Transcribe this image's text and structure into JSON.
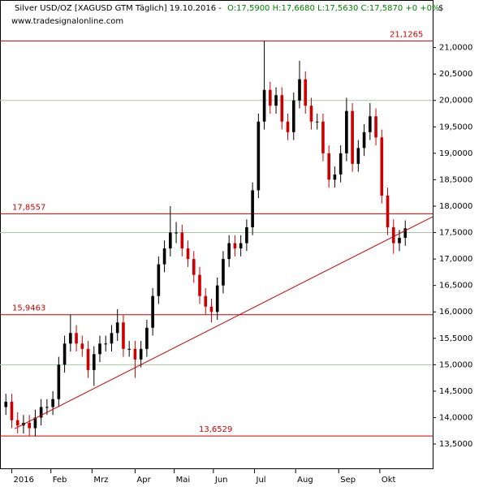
{
  "chart_data": {
    "type": "candlestick",
    "title": "Silver USD/OZ [XAGUSD GTM  Täglich] 19.10.2016 -",
    "quote": "O:17,5900 H:17,6680 L:17,5630 C:17,5870 +0 +0%",
    "source": "www.tradesignalonline.com",
    "y_unit": "$",
    "up_color": "#000000",
    "down_color": "#cc0000",
    "grid_color": "#a8c8a8",
    "level_color": "#cc0000",
    "xlim": [
      -3,
      218
    ],
    "ylim": [
      13.04,
      21.9
    ],
    "xticks": [
      {
        "value": 3,
        "label": "2016"
      },
      {
        "value": 23,
        "label": "Feb"
      },
      {
        "value": 44,
        "label": "Mrz"
      },
      {
        "value": 66,
        "label": "Apr"
      },
      {
        "value": 86,
        "label": "Mai"
      },
      {
        "value": 106,
        "label": "Jun"
      },
      {
        "value": 127,
        "label": "Jul"
      },
      {
        "value": 148,
        "label": "Aug"
      },
      {
        "value": 170,
        "label": "Sep"
      },
      {
        "value": 191,
        "label": "Okt"
      }
    ],
    "yticks": [
      {
        "value": 13.5,
        "label": "13,5000"
      },
      {
        "value": 14,
        "label": "14,0000"
      },
      {
        "value": 14.5,
        "label": "14,5000"
      },
      {
        "value": 15,
        "label": "15,0000"
      },
      {
        "value": 15.5,
        "label": "15,5000"
      },
      {
        "value": 16,
        "label": "16,0000"
      },
      {
        "value": 16.5,
        "label": "16,5000"
      },
      {
        "value": 17,
        "label": "17,0000"
      },
      {
        "value": 17.5,
        "label": "17,5000"
      },
      {
        "value": 18,
        "label": "18,0000"
      },
      {
        "value": 18.5,
        "label": "18,5000"
      },
      {
        "value": 19,
        "label": "19,0000"
      },
      {
        "value": 19.5,
        "label": "19,5000"
      },
      {
        "value": 20,
        "label": "20,0000"
      },
      {
        "value": 20.5,
        "label": "20,5000"
      },
      {
        "value": 21,
        "label": "21,0000"
      }
    ],
    "gridlines": [
      15,
      17.5,
      20
    ],
    "levels": [
      {
        "value": 21.1265,
        "label": "21,1265"
      },
      {
        "value": 17.8557,
        "label": "17,8557"
      },
      {
        "value": 15.9463,
        "label": "15,9463"
      },
      {
        "value": 13.6529,
        "label": "13,6529"
      }
    ],
    "trendline": {
      "x": [
        4.5,
        218
      ],
      "y": [
        13.79,
        17.8
      ]
    },
    "x": [
      0,
      3,
      6,
      9,
      12,
      15,
      18,
      21,
      24,
      27,
      30,
      33,
      36,
      39,
      42,
      45,
      48,
      51,
      54,
      57,
      60,
      63,
      66,
      69,
      72,
      75,
      78,
      81,
      84,
      87,
      90,
      93,
      96,
      99,
      102,
      105,
      108,
      111,
      114,
      117,
      120,
      123,
      126,
      129,
      132,
      135,
      138,
      141,
      144,
      147,
      150,
      153,
      156,
      159,
      162,
      165,
      168,
      171,
      174,
      177,
      180,
      183,
      186,
      189,
      192,
      195,
      198,
      201,
      204
    ],
    "open": [
      14.2,
      14.3,
      13.95,
      13.85,
      13.9,
      13.8,
      14.0,
      14.2,
      14.2,
      14.35,
      15.0,
      15.4,
      15.6,
      15.4,
      15.3,
      14.9,
      15.2,
      15.4,
      15.4,
      15.6,
      15.8,
      15.3,
      15.3,
      15.1,
      15.3,
      15.7,
      16.3,
      16.9,
      17.2,
      17.5,
      17.5,
      17.2,
      17.0,
      16.7,
      16.3,
      16.1,
      16.0,
      16.5,
      17.0,
      17.3,
      17.2,
      17.3,
      17.6,
      18.3,
      19.6,
      20.2,
      19.9,
      20.1,
      19.6,
      19.4,
      20.0,
      20.4,
      19.9,
      19.6,
      19.6,
      19.0,
      18.5,
      18.6,
      19.0,
      19.8,
      18.8,
      19.1,
      19.4,
      19.7,
      19.3,
      18.2,
      17.6,
      17.3,
      17.4
    ],
    "high": [
      14.45,
      14.45,
      14.1,
      14.05,
      14.05,
      14.15,
      14.35,
      14.35,
      14.5,
      15.15,
      15.55,
      15.95,
      15.75,
      15.55,
      15.45,
      15.35,
      15.55,
      15.55,
      15.75,
      16.05,
      15.95,
      15.45,
      15.45,
      15.45,
      15.85,
      16.45,
      17.05,
      17.35,
      18.0,
      17.7,
      17.65,
      17.35,
      17.15,
      16.85,
      16.45,
      16.25,
      16.65,
      17.15,
      17.45,
      17.45,
      17.45,
      17.75,
      18.45,
      19.75,
      21.13,
      20.35,
      20.25,
      20.25,
      19.75,
      20.15,
      20.75,
      20.55,
      20.05,
      19.75,
      19.75,
      19.15,
      18.75,
      19.15,
      20.05,
      19.95,
      19.25,
      19.55,
      19.95,
      19.85,
      19.45,
      18.35,
      17.75,
      17.55,
      17.73
    ],
    "low": [
      14.05,
      13.8,
      13.7,
      13.7,
      13.65,
      13.65,
      13.85,
      14.05,
      14.05,
      14.2,
      14.85,
      15.25,
      15.25,
      15.15,
      14.75,
      14.6,
      15.05,
      15.25,
      15.25,
      15.45,
      15.15,
      15.15,
      14.75,
      14.95,
      15.15,
      15.55,
      16.15,
      16.75,
      17.05,
      17.3,
      17.05,
      16.85,
      16.55,
      16.15,
      15.95,
      15.8,
      15.85,
      16.35,
      16.85,
      17.05,
      17.05,
      17.15,
      17.45,
      18.15,
      19.45,
      19.75,
      19.75,
      19.45,
      19.25,
      19.25,
      19.85,
      19.75,
      19.45,
      19.45,
      18.85,
      18.35,
      18.35,
      18.45,
      18.85,
      18.65,
      18.65,
      18.95,
      19.25,
      19.15,
      18.05,
      17.45,
      17.1,
      17.15,
      17.25
    ],
    "close": [
      14.3,
      13.95,
      13.85,
      13.9,
      13.8,
      14.0,
      14.2,
      14.2,
      14.35,
      15.0,
      15.4,
      15.6,
      15.4,
      15.3,
      14.9,
      15.2,
      15.4,
      15.4,
      15.6,
      15.8,
      15.3,
      15.3,
      15.1,
      15.3,
      15.7,
      16.3,
      16.9,
      17.2,
      17.5,
      17.5,
      17.2,
      17.0,
      16.7,
      16.3,
      16.1,
      16.0,
      16.5,
      17.0,
      17.3,
      17.2,
      17.3,
      17.6,
      18.3,
      19.6,
      20.2,
      19.9,
      20.1,
      19.6,
      19.4,
      20.0,
      20.4,
      19.9,
      19.6,
      19.6,
      19.0,
      18.5,
      18.6,
      19.0,
      19.8,
      18.8,
      19.1,
      19.4,
      19.7,
      19.3,
      18.2,
      17.6,
      17.3,
      17.4,
      17.58
    ]
  }
}
